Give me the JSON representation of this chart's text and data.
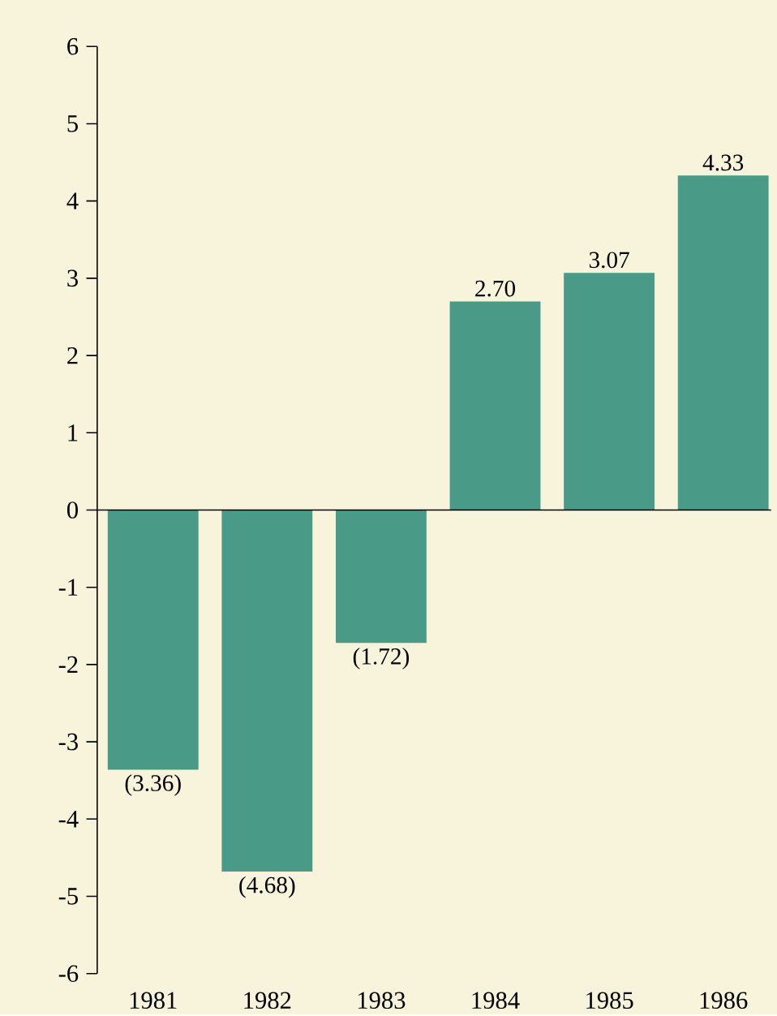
{
  "chart_data": {
    "type": "bar",
    "categories": [
      "1981",
      "1982",
      "1983",
      "1984",
      "1985",
      "1986"
    ],
    "values": [
      -3.36,
      -4.68,
      -1.72,
      2.7,
      3.07,
      4.33
    ],
    "value_labels": [
      "(3.36)",
      "(4.68)",
      "(1.72)",
      "2.70",
      "3.07",
      "4.33"
    ],
    "color": "#4a9a88",
    "ylim": [
      -6,
      6
    ],
    "yticks": [
      -6,
      -5,
      -4,
      -3,
      -2,
      -1,
      0,
      1,
      2,
      3,
      4,
      5,
      6
    ]
  }
}
